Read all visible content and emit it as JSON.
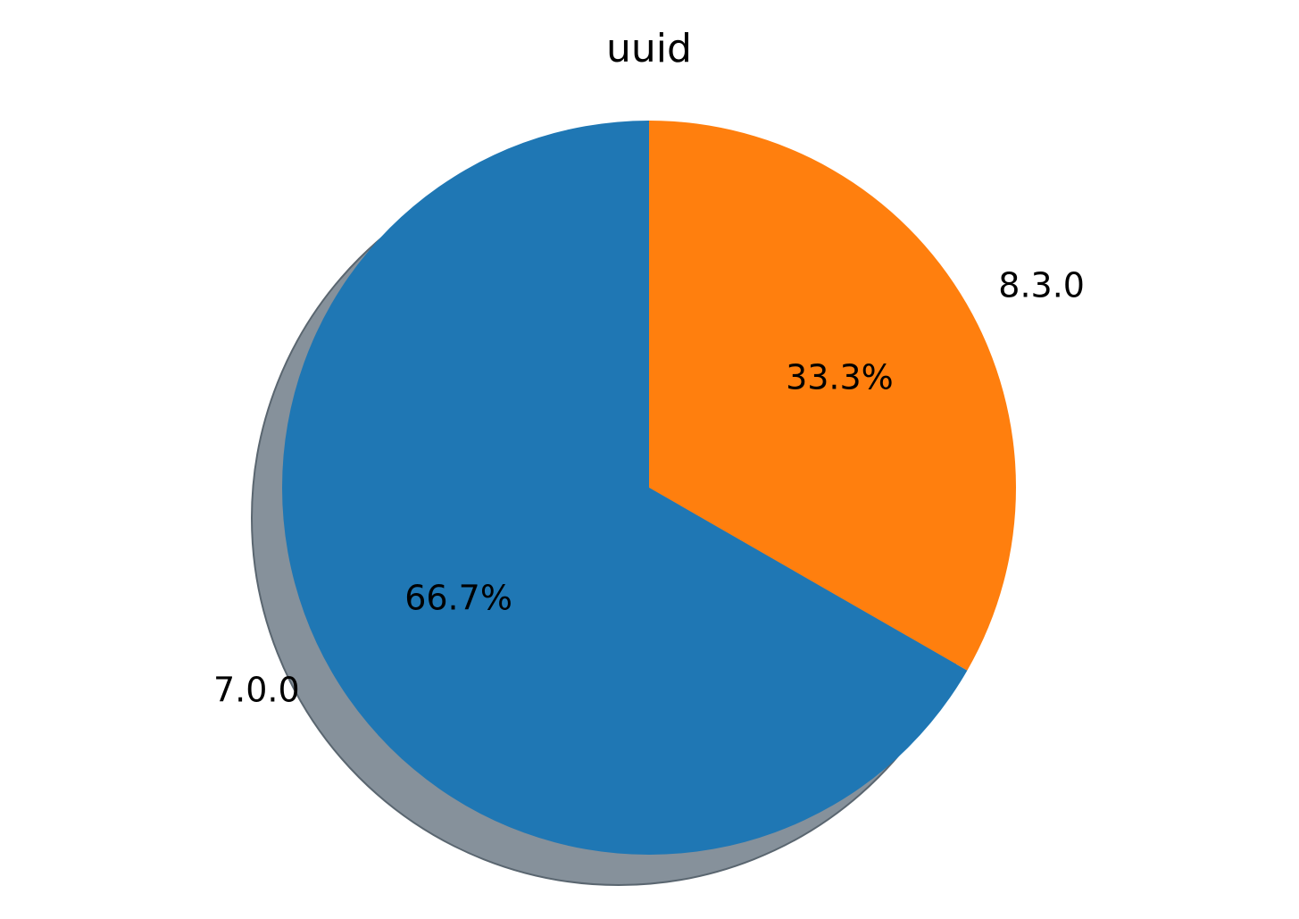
{
  "chart_data": {
    "type": "pie",
    "title": "uuid",
    "labels": [
      "8.3.0",
      "7.0.0"
    ],
    "values": [
      33.3,
      66.7
    ],
    "percent_labels": [
      "33.3%",
      "66.7%"
    ],
    "colors": [
      "#ff7f0e",
      "#1f77b4"
    ],
    "shadow": true,
    "start_angle_deg": 90,
    "direction": "clockwise"
  }
}
